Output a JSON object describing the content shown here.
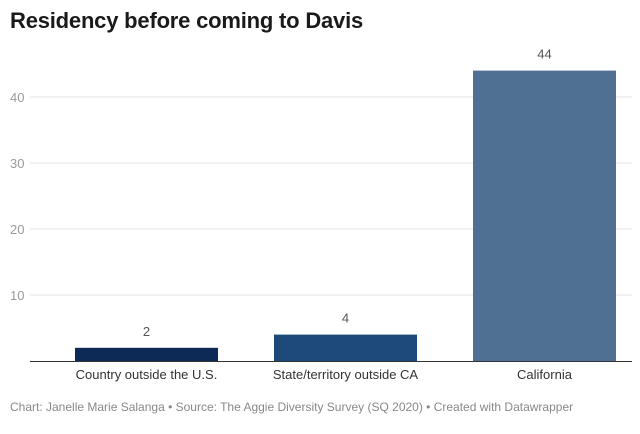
{
  "chart_data": {
    "type": "bar",
    "title": "Residency before coming to Davis",
    "categories": [
      "Country outside the U.S.",
      "State/territory outside CA",
      "California"
    ],
    "values": [
      2,
      4,
      44
    ],
    "value_labels": [
      "2",
      "4",
      "44"
    ],
    "yticks": [
      10,
      20,
      30,
      40
    ],
    "ylim": [
      0,
      50
    ],
    "grid": true,
    "colors": [
      "#0c2a55",
      "#1e4a7a",
      "#4f6f93"
    ],
    "footer": "Chart: Janelle Marie Salanga • Source: The Aggie Diversity Survey (SQ 2020) • Created with Datawrapper"
  }
}
